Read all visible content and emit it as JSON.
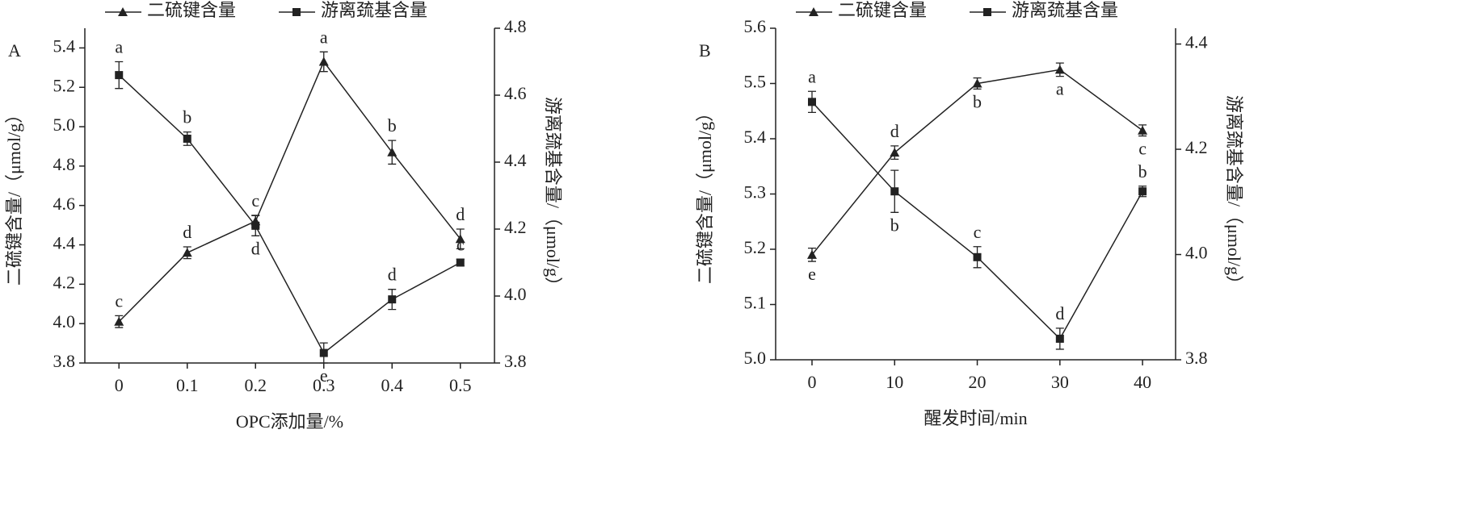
{
  "chart_data": [
    {
      "type": "line",
      "panel_label": "A",
      "x_label": "OPC添加量/%",
      "y_label": "二硫键含量/（μmol/g）",
      "y2_label": "游离巯基含量/（μmol/g）",
      "x": [
        0,
        0.1,
        0.2,
        0.3,
        0.4,
        0.5
      ],
      "xlim": [
        -0.05,
        0.55
      ],
      "xticks": [
        0,
        0.1,
        0.2,
        0.3,
        0.4,
        0.5
      ],
      "ylim": [
        3.8,
        5.5
      ],
      "yticks": [
        3.8,
        {
          "value": 4,
          "label": "4.0"
        },
        4.2,
        4.4,
        4.6,
        4.8,
        {
          "value": 5,
          "label": "5.0"
        },
        5.2,
        5.4
      ],
      "y2lim": [
        3.8,
        4.8
      ],
      "y2ticks": [
        3.8,
        {
          "value": 4,
          "label": "4.0"
        },
        4.2,
        4.4,
        4.6,
        4.8
      ],
      "series": [
        {
          "name": "二硫键含量",
          "color": "#222222",
          "marker": "triangle",
          "axis": "y",
          "values": [
            4.01,
            4.36,
            4.52,
            5.33,
            4.87,
            4.43
          ],
          "errors": [
            0.03,
            0.03,
            0.03,
            0.05,
            0.06,
            0.05
          ],
          "letters": [
            "c",
            "d",
            "c",
            "a",
            "b",
            "d"
          ],
          "letter_positions": [
            "above",
            "above",
            "above",
            "above",
            "above",
            "above"
          ]
        },
        {
          "name": "游离巯基含量",
          "color": "#222222",
          "marker": "square",
          "axis": "y2",
          "values": [
            4.66,
            4.47,
            4.21,
            3.83,
            3.99,
            4.1
          ],
          "errors": [
            0.04,
            0.02,
            0.03,
            0.03,
            0.03,
            0.01
          ],
          "letters": [
            "a",
            "b",
            "d",
            "e",
            "d",
            "c"
          ],
          "letter_positions": [
            "above",
            "above",
            "below",
            "below",
            "above",
            "above"
          ]
        }
      ]
    },
    {
      "type": "line",
      "panel_label": "B",
      "x_label": "醒发时间/min",
      "y_label": "二硫键含量/（μmol/g）",
      "y2_label": "游离巯基含量/（μmol/g）",
      "x": [
        0,
        10,
        20,
        30,
        40
      ],
      "xlim": [
        -4.4,
        44
      ],
      "xticks": [
        0,
        10,
        20,
        30,
        40
      ],
      "ylim": [
        5.0,
        5.6
      ],
      "yticks": [
        {
          "value": 5,
          "label": "5.0"
        },
        5.1,
        5.2,
        5.3,
        5.4,
        5.5,
        5.6
      ],
      "y2lim": [
        3.8,
        4.43
      ],
      "y2ticks": [
        3.8,
        {
          "value": 4,
          "label": "4.0"
        },
        4.2,
        4.4
      ],
      "series": [
        {
          "name": "二硫键含量",
          "color": "#222222",
          "marker": "triangle",
          "axis": "y",
          "values": [
            5.19,
            5.375,
            5.5,
            5.525,
            5.415
          ],
          "errors": [
            0.012,
            0.012,
            0.01,
            0.012,
            0.01
          ],
          "letters": [
            "e",
            "d",
            "b",
            "a",
            "c"
          ],
          "letter_positions": [
            "below",
            "above",
            "below",
            "below",
            "below"
          ]
        },
        {
          "name": "游离巯基含量",
          "color": "#222222",
          "marker": "square",
          "axis": "y2",
          "values": [
            4.29,
            4.12,
            3.995,
            3.84,
            4.12
          ],
          "errors": [
            0.02,
            0.04,
            0.02,
            0.02,
            0.01
          ],
          "letters": [
            "a",
            "b",
            "c",
            "d",
            "b"
          ],
          "letter_positions": [
            "above",
            "below",
            "above",
            "above",
            "above"
          ]
        }
      ]
    }
  ]
}
